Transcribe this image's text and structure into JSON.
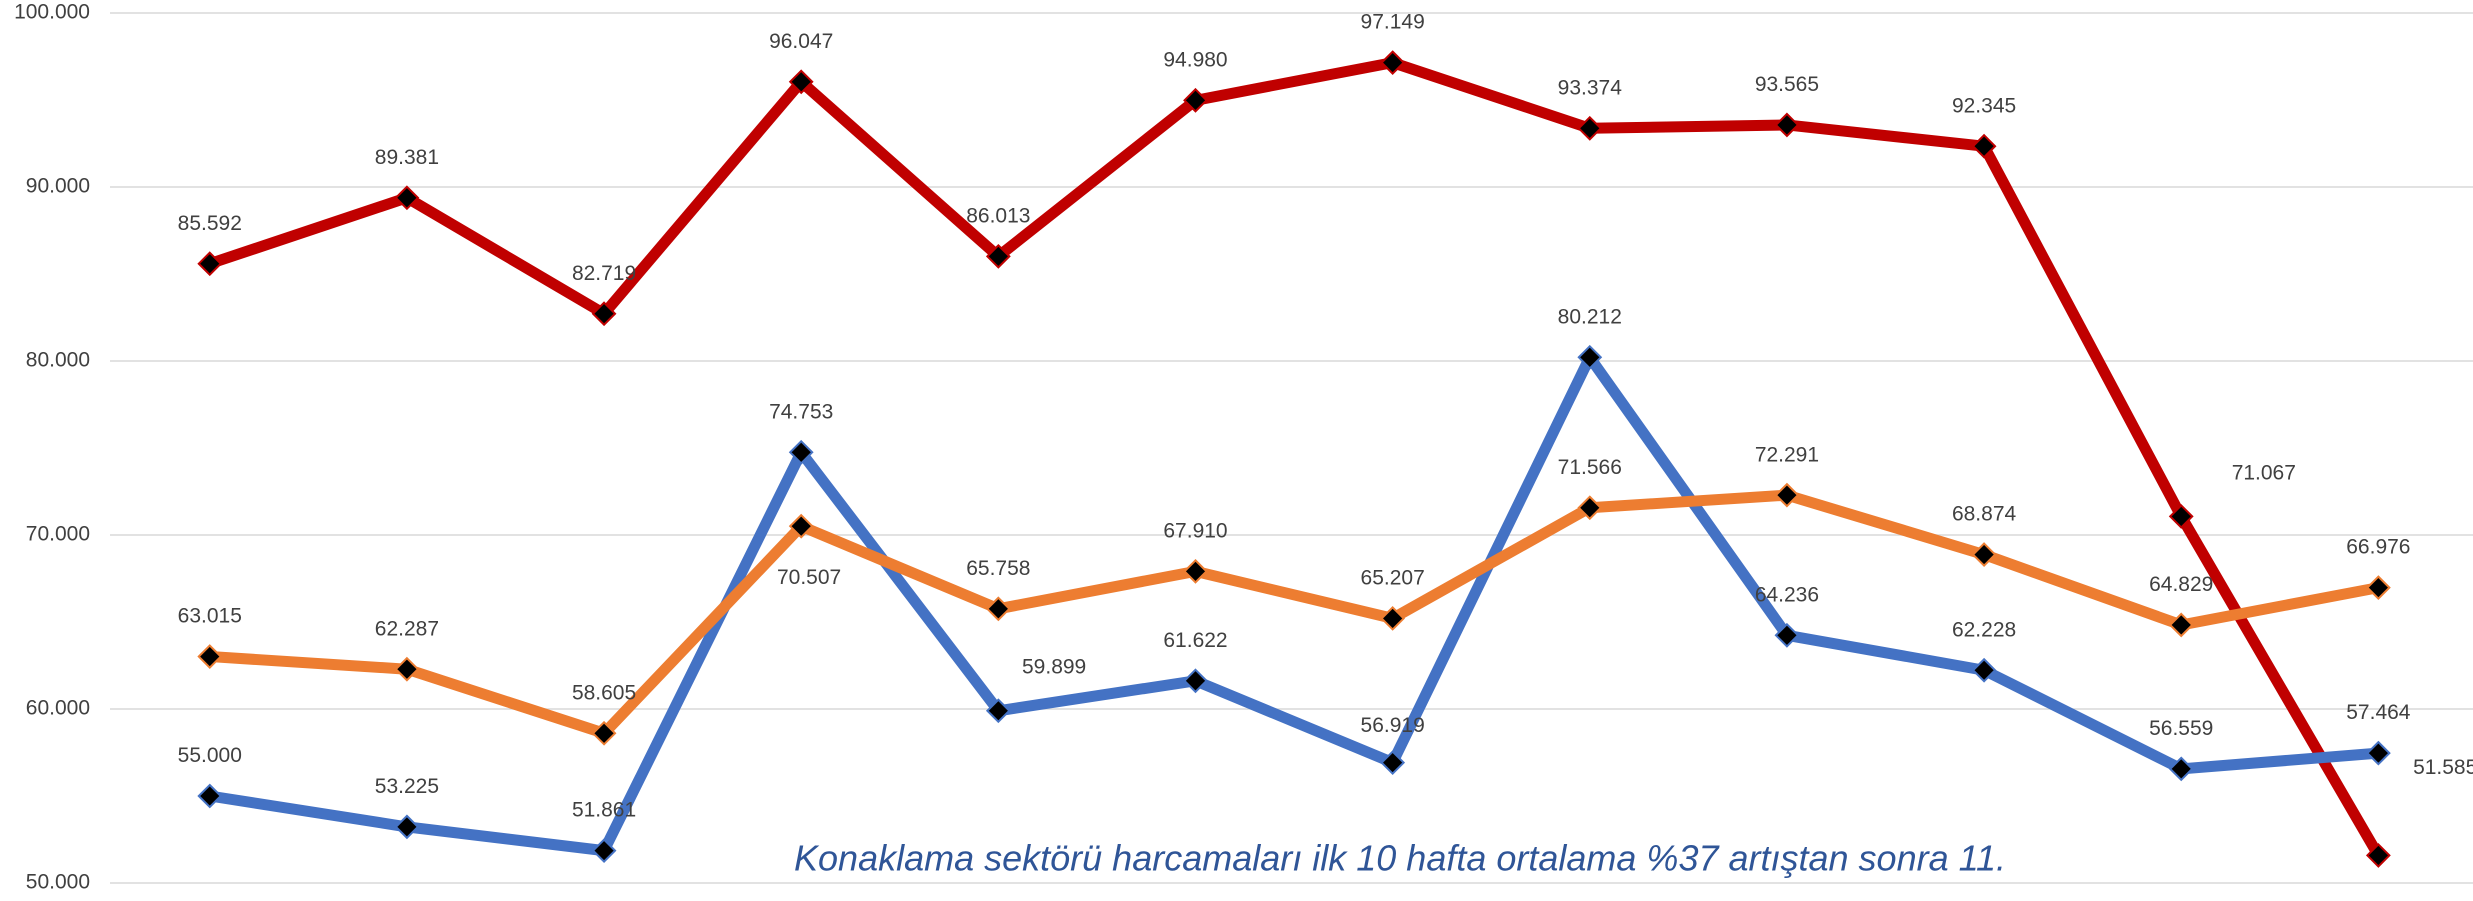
{
  "chart_data": {
    "type": "line",
    "annotation": "Konaklama sektörü harcamaları ilk 10 hafta ortalama %37 artıştan sonra 11.",
    "categories": [
      null,
      null,
      null,
      null,
      null,
      null,
      null,
      null,
      null,
      null,
      null,
      null
    ],
    "ylim": [
      50000,
      100000
    ],
    "yticks": [
      {
        "value": 50000,
        "label": "50.000"
      },
      {
        "value": 60000,
        "label": "60.000"
      },
      {
        "value": 70000,
        "label": "70.000"
      },
      {
        "value": 80000,
        "label": "80.000"
      },
      {
        "value": 90000,
        "label": "90.000"
      },
      {
        "value": 100000,
        "label": "100.000"
      }
    ],
    "grid": true,
    "marker_color": "#000000",
    "series": [
      {
        "color": "#c00000",
        "values": [
          85592,
          89381,
          82719,
          96047,
          86013,
          94980,
          97149,
          93374,
          93565,
          92345,
          71067,
          51585
        ],
        "value_labels": [
          "85.592",
          "89.381",
          "82.719",
          "96.047",
          "86.013",
          "94.980",
          "97.149",
          "93.374",
          "93.565",
          "92.345",
          "71.067",
          "51.585"
        ]
      },
      {
        "color": "#4472c4",
        "values": [
          55000,
          53225,
          51861,
          74753,
          59899,
          61622,
          56919,
          80212,
          64236,
          62228,
          56559,
          57464
        ],
        "value_labels": [
          "55.000",
          "53.225",
          "51.861",
          "74.753",
          "59.899",
          "61.622",
          "56.919",
          "80.212",
          "64.236",
          "62.228",
          "56.559",
          "57.464"
        ]
      },
      {
        "color": "#ed7d31",
        "values": [
          63015,
          62287,
          58605,
          70507,
          65758,
          67910,
          65207,
          71566,
          72291,
          68874,
          64829,
          66976
        ],
        "value_labels": [
          "63.015",
          "62.287",
          "58.605",
          "70.507",
          "65.758",
          "67.910",
          "65.207",
          "71.566",
          "72.291",
          "68.874",
          "64.829",
          "66.976"
        ]
      }
    ]
  }
}
